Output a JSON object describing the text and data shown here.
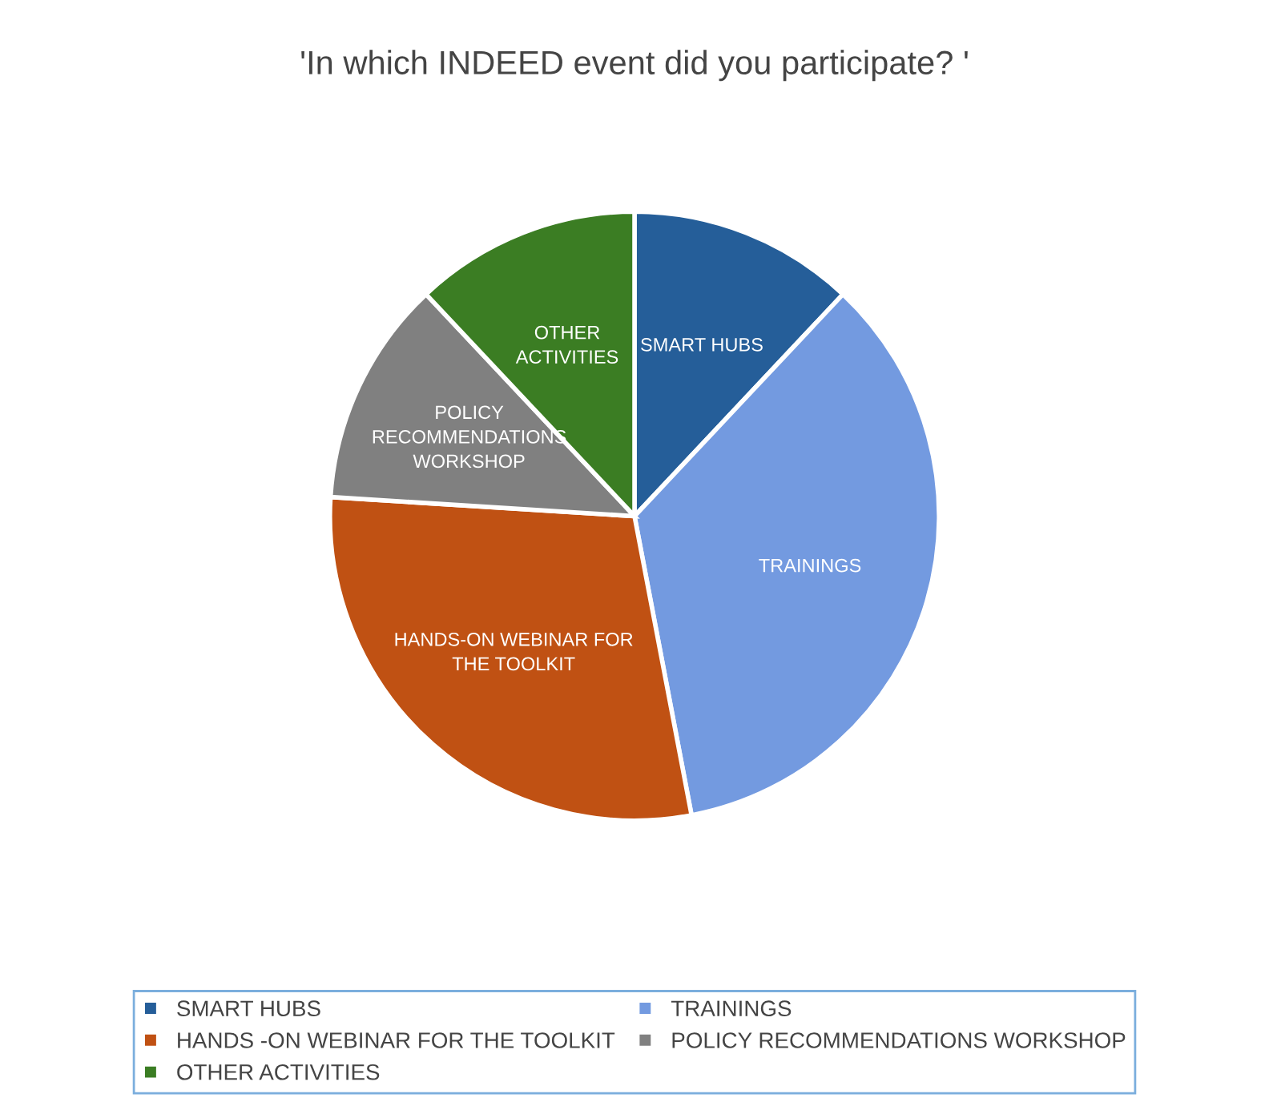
{
  "chart_data": {
    "type": "pie",
    "title": "'In which INDEED event did you participate? '",
    "categories": [
      "SMART HUBS",
      "TRAININGS",
      "HANDS -ON WEBINAR FOR THE TOOLKIT",
      "POLICY RECOMMENDATIONS WORKSHOP",
      "OTHER ACTIVITIES"
    ],
    "values": [
      12,
      35,
      29,
      12,
      12
    ],
    "value_labels": [
      "SMART HUBS",
      "TRAININGS",
      "HANDS-ON WEBINAR FOR\nTHE TOOLKIT",
      "POLICY\nRECOMMENDATIONS\nWORKSHOP",
      "OTHER\nACTIVITIES"
    ],
    "colors": [
      "#255e99",
      "#739ae0",
      "#c05113",
      "#808080",
      "#3b7d23"
    ],
    "legend": "bottom"
  }
}
